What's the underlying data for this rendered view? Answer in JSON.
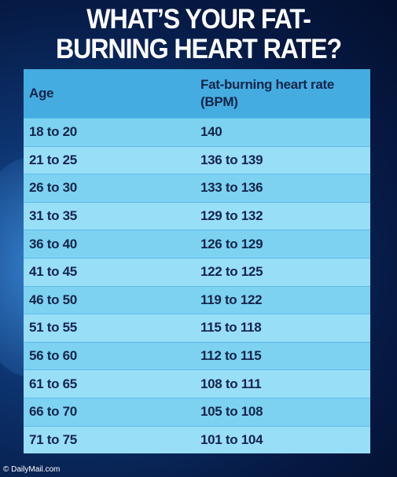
{
  "title": [
    "WHAT’S YOUR FAT-",
    "BURNING HEART RATE?"
  ],
  "table": {
    "header": [
      "Age",
      "Fat-burning heart rate (BPM)"
    ],
    "rows": [
      [
        "18 to 20",
        "140"
      ],
      [
        "21 to 25",
        "136 to 139"
      ],
      [
        "26 to 30",
        "133 to 136"
      ],
      [
        "31 to 35",
        "129 to 132"
      ],
      [
        "36 to 40",
        "126 to 129"
      ],
      [
        "41 to 45",
        "122 to 125"
      ],
      [
        "46 to 50",
        "119 to 122"
      ],
      [
        "51 to 55",
        "115 to 118"
      ],
      [
        "56 to 60",
        "112 to 115"
      ],
      [
        "61 to 65",
        "108 to 111"
      ],
      [
        "66 to 70",
        "105 to 108"
      ],
      [
        "71 to 75",
        "101 to 104"
      ]
    ]
  },
  "footer": "© DailyMail.com"
}
